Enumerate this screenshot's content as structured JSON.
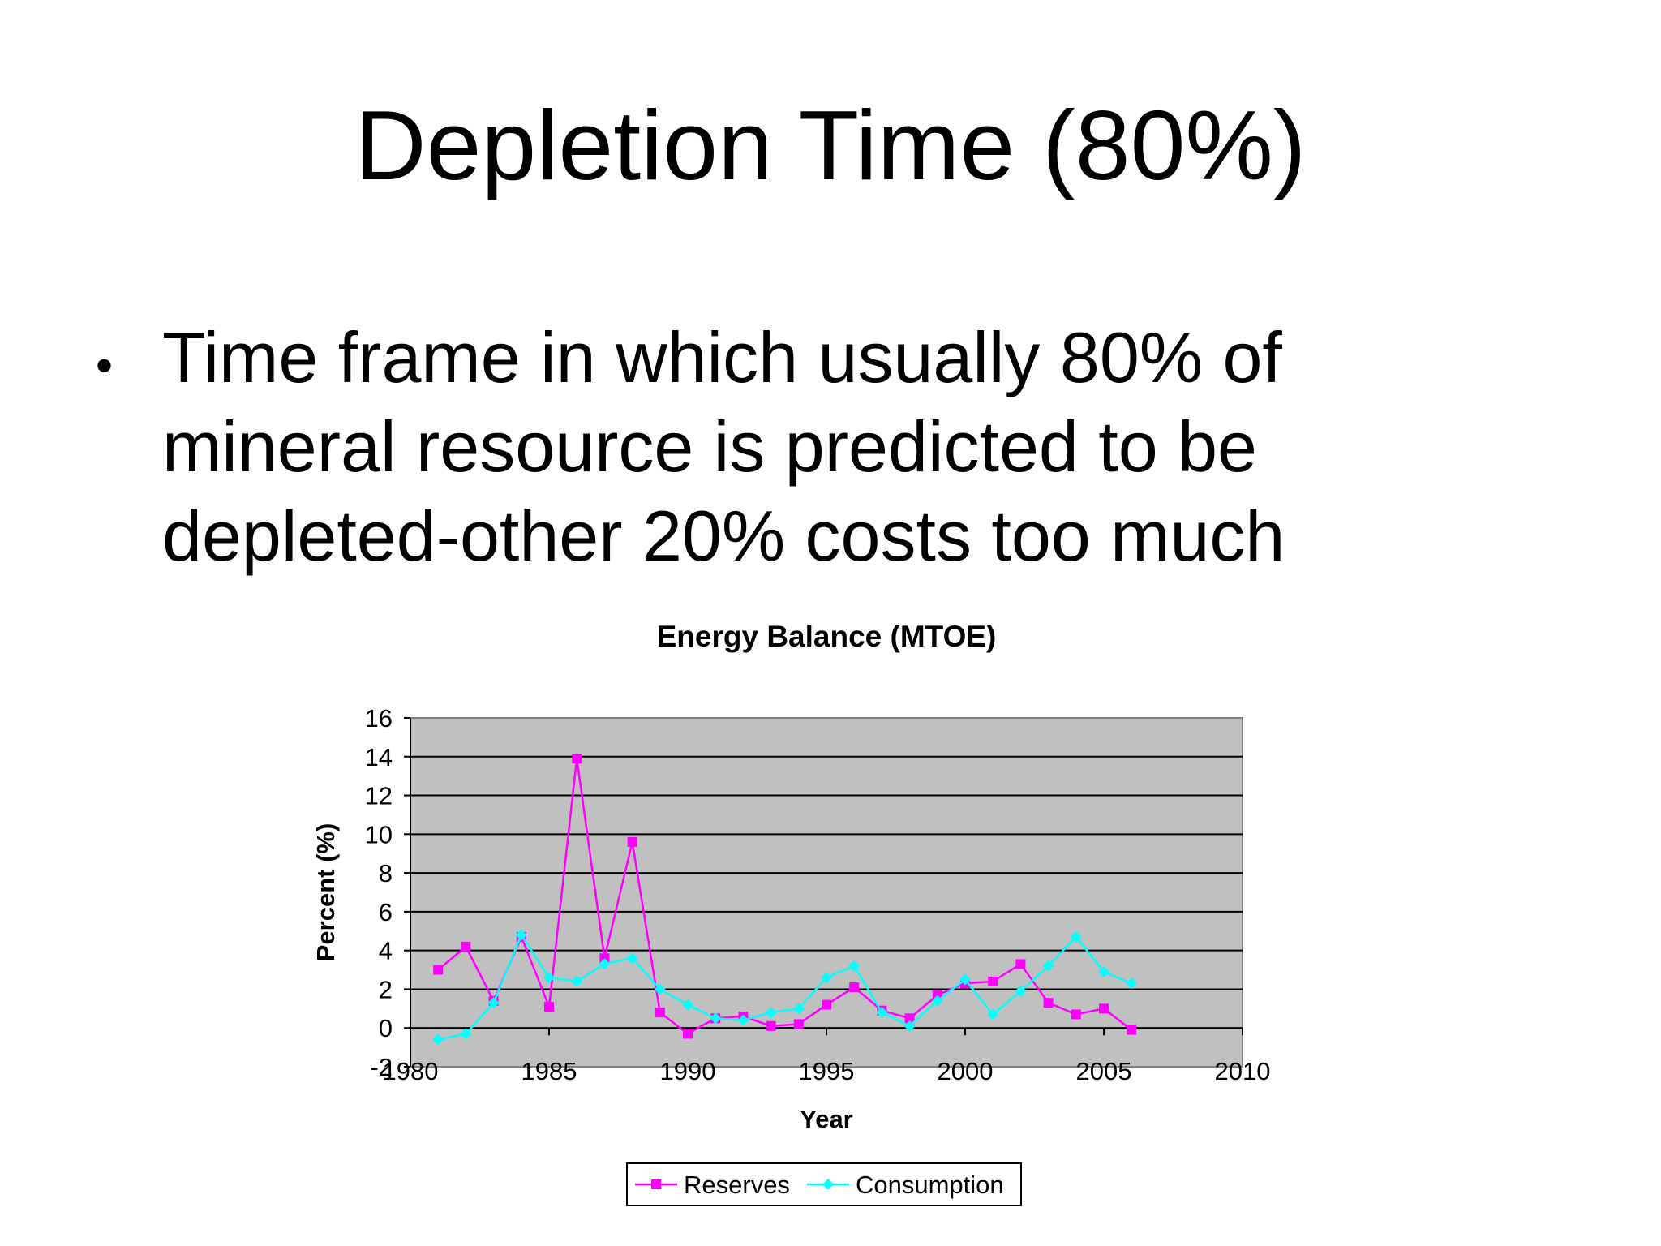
{
  "slide": {
    "title": "Depletion Time (80%)",
    "bullet": "Time frame in which usually 80% of mineral resource is predicted to be depleted-other 20% costs too much"
  },
  "chart_data": {
    "type": "line",
    "title": "Energy Balance (MTOE)",
    "xlabel": "Year",
    "ylabel": "Percent (%)",
    "xlim": [
      1980,
      2010
    ],
    "ylim": [
      -2,
      16
    ],
    "x_ticks": [
      "1980",
      "1985",
      "1990",
      "1995",
      "2000",
      "2005",
      "2010"
    ],
    "y_ticks": [
      "-2",
      "0",
      "2",
      "4",
      "6",
      "8",
      "10",
      "12",
      "14",
      "16"
    ],
    "grid": true,
    "legend_position": "bottom",
    "plot_background": "#c0c0c0",
    "x": [
      1981,
      1982,
      1983,
      1984,
      1985,
      1986,
      1987,
      1988,
      1989,
      1990,
      1991,
      1992,
      1993,
      1994,
      1995,
      1996,
      1997,
      1998,
      1999,
      2000,
      2001,
      2002,
      2003,
      2004,
      2005,
      2006
    ],
    "series": [
      {
        "name": "Reserves",
        "color": "#ff00ff",
        "marker": "square",
        "values": [
          3.0,
          4.2,
          1.4,
          4.7,
          1.1,
          13.9,
          3.6,
          9.6,
          0.8,
          -0.3,
          0.5,
          0.6,
          0.1,
          0.2,
          1.2,
          2.1,
          0.9,
          0.5,
          1.7,
          2.3,
          2.4,
          3.3,
          1.3,
          0.7,
          1.0,
          -0.1
        ]
      },
      {
        "name": "Consumption",
        "color": "#00ffff",
        "marker": "diamond",
        "values": [
          -0.6,
          -0.3,
          1.3,
          4.8,
          2.6,
          2.4,
          3.3,
          3.6,
          2.0,
          1.2,
          0.5,
          0.4,
          0.8,
          1.0,
          2.6,
          3.2,
          0.8,
          0.1,
          1.4,
          2.5,
          0.7,
          1.9,
          3.2,
          4.7,
          2.9,
          2.3
        ]
      }
    ]
  }
}
